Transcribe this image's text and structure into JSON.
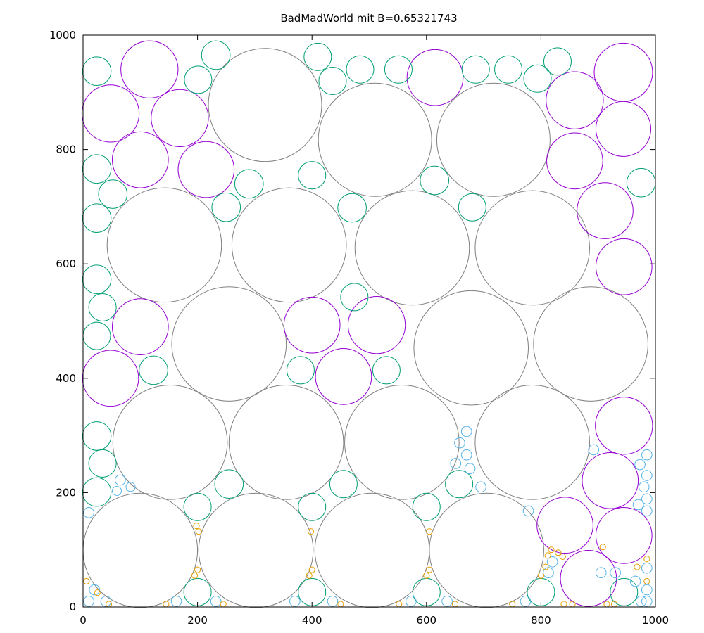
{
  "chart_data": {
    "type": "scatter",
    "title": "BadMadWorld mit B=0.65321743",
    "xlabel": "",
    "ylabel": "",
    "xlim": [
      0,
      1000
    ],
    "ylim": [
      0,
      1000
    ],
    "x_ticks": [
      0,
      200,
      400,
      600,
      800,
      1000
    ],
    "y_ticks": [
      0,
      200,
      400,
      600,
      800,
      1000
    ],
    "x_tick_labels": [
      "0",
      "200",
      "400",
      "600",
      "800",
      "1000"
    ],
    "y_tick_labels": [
      "0",
      "200",
      "400",
      "600",
      "800",
      "1000"
    ],
    "grid": false,
    "series": [
      {
        "color": "#808080",
        "circles": [
          [
            318,
            878,
            99
          ],
          [
            510,
            817,
            99
          ],
          [
            717,
            817,
            99
          ],
          [
            142,
            633,
            100
          ],
          [
            360,
            633,
            100
          ],
          [
            575,
            628,
            100
          ],
          [
            785,
            628,
            100
          ],
          [
            255,
            460,
            100
          ],
          [
            678,
            453,
            100
          ],
          [
            887,
            460,
            100
          ],
          [
            152,
            288,
            100
          ],
          [
            355,
            288,
            100
          ],
          [
            557,
            288,
            100
          ],
          [
            785,
            288,
            100
          ],
          [
            100,
            99,
            100
          ],
          [
            302,
            99,
            100
          ],
          [
            505,
            99,
            100
          ],
          [
            705,
            99,
            100
          ]
        ]
      },
      {
        "color": "#9400d3",
        "circles": [
          [
            116,
            940,
            50
          ],
          [
            48,
            863,
            50
          ],
          [
            169,
            855,
            50
          ],
          [
            100,
            782,
            49
          ],
          [
            215,
            765,
            49
          ],
          [
            615,
            926,
            49
          ],
          [
            859,
            886,
            50
          ],
          [
            944,
            935,
            51
          ],
          [
            944,
            836,
            48
          ],
          [
            859,
            780,
            49
          ],
          [
            912,
            693,
            49
          ],
          [
            945,
            595,
            49
          ],
          [
            400,
            493,
            49
          ],
          [
            513,
            493,
            50
          ],
          [
            48,
            400,
            49
          ],
          [
            100,
            490,
            49
          ],
          [
            455,
            403,
            49
          ],
          [
            945,
            317,
            50
          ],
          [
            921,
            221,
            49
          ],
          [
            842,
            143,
            49
          ],
          [
            945,
            125,
            49
          ],
          [
            883,
            50,
            49
          ]
        ]
      },
      {
        "color": "#009e73",
        "circles": [
          [
            24,
            937,
            25
          ],
          [
            232,
            965,
            25
          ],
          [
            201,
            922,
            24
          ],
          [
            410,
            962,
            24
          ],
          [
            436,
            920,
            24
          ],
          [
            484,
            940,
            24
          ],
          [
            551,
            940,
            24
          ],
          [
            686,
            940,
            24
          ],
          [
            743,
            940,
            24
          ],
          [
            794,
            924,
            24
          ],
          [
            829,
            954,
            24
          ],
          [
            24,
            766,
            25
          ],
          [
            52,
            722,
            25
          ],
          [
            24,
            680,
            25
          ],
          [
            290,
            740,
            25
          ],
          [
            250,
            699,
            25
          ],
          [
            400,
            755,
            24
          ],
          [
            470,
            698,
            25
          ],
          [
            614,
            746,
            25
          ],
          [
            680,
            699,
            24
          ],
          [
            975,
            742,
            25
          ],
          [
            24,
            573,
            25
          ],
          [
            34,
            524,
            24
          ],
          [
            24,
            474,
            24
          ],
          [
            474,
            542,
            24
          ],
          [
            123,
            414,
            25
          ],
          [
            380,
            414,
            24
          ],
          [
            530,
            414,
            24
          ],
          [
            24,
            299,
            25
          ],
          [
            34,
            251,
            24
          ],
          [
            24,
            201,
            25
          ],
          [
            255,
            215,
            25
          ],
          [
            455,
            215,
            24
          ],
          [
            657,
            215,
            24
          ],
          [
            200,
            175,
            24
          ],
          [
            400,
            175,
            24
          ],
          [
            600,
            175,
            24
          ],
          [
            200,
            26,
            24
          ],
          [
            400,
            26,
            24
          ],
          [
            600,
            26,
            24
          ],
          [
            800,
            26,
            24
          ],
          [
            945,
            26,
            24
          ]
        ]
      },
      {
        "color": "#56b4e9",
        "circles": [
          [
            65,
            222,
            9
          ],
          [
            83,
            210,
            8
          ],
          [
            59,
            203,
            8
          ],
          [
            10,
            165,
            9
          ],
          [
            670,
            307,
            9
          ],
          [
            658,
            287,
            9
          ],
          [
            670,
            266,
            9
          ],
          [
            651,
            251,
            9
          ],
          [
            676,
            242,
            9
          ],
          [
            695,
            210,
            9
          ],
          [
            892,
            275,
            9
          ],
          [
            778,
            168,
            9
          ],
          [
            985,
            266,
            9
          ],
          [
            973,
            249,
            9
          ],
          [
            985,
            230,
            9
          ],
          [
            980,
            210,
            9
          ],
          [
            985,
            189,
            9
          ],
          [
            970,
            179,
            9
          ],
          [
            985,
            168,
            9
          ],
          [
            813,
            60,
            9
          ],
          [
            820,
            79,
            9
          ],
          [
            905,
            60,
            9
          ],
          [
            930,
            60,
            9
          ],
          [
            965,
            45,
            9
          ],
          [
            985,
            68,
            9
          ],
          [
            985,
            30,
            9
          ],
          [
            985,
            10,
            9
          ],
          [
            975,
            10,
            9
          ],
          [
            10,
            10,
            9
          ],
          [
            20,
            30,
            9
          ],
          [
            40,
            10,
            9
          ],
          [
            163,
            10,
            9
          ],
          [
            232,
            10,
            9
          ],
          [
            370,
            10,
            9
          ],
          [
            436,
            10,
            9
          ],
          [
            573,
            10,
            9
          ],
          [
            636,
            10,
            9
          ],
          [
            773,
            10,
            9
          ]
        ]
      },
      {
        "color": "#e69f00",
        "circles": [
          [
            6,
            45,
            5
          ],
          [
            25,
            25,
            5
          ],
          [
            45,
            5,
            5
          ],
          [
            145,
            5,
            5
          ],
          [
            198,
            142,
            5
          ],
          [
            202,
            132,
            5
          ],
          [
            200,
            65,
            5
          ],
          [
            195,
            55,
            5
          ],
          [
            398,
            132,
            5
          ],
          [
            400,
            65,
            5
          ],
          [
            395,
            55,
            5
          ],
          [
            605,
            132,
            5
          ],
          [
            605,
            65,
            5
          ],
          [
            600,
            55,
            5
          ],
          [
            245,
            5,
            5
          ],
          [
            450,
            5,
            5
          ],
          [
            552,
            5,
            5
          ],
          [
            650,
            5,
            5
          ],
          [
            750,
            5,
            5
          ],
          [
            812,
            90,
            5
          ],
          [
            818,
            100,
            5
          ],
          [
            830,
            95,
            5
          ],
          [
            838,
            88,
            5
          ],
          [
            808,
            70,
            5
          ],
          [
            800,
            55,
            5
          ],
          [
            840,
            5,
            5
          ],
          [
            855,
            5,
            5
          ],
          [
            908,
            105,
            5
          ],
          [
            968,
            70,
            5
          ],
          [
            985,
            84,
            5
          ],
          [
            985,
            45,
            5
          ],
          [
            915,
            5,
            5
          ],
          [
            928,
            5,
            5
          ]
        ]
      }
    ]
  }
}
